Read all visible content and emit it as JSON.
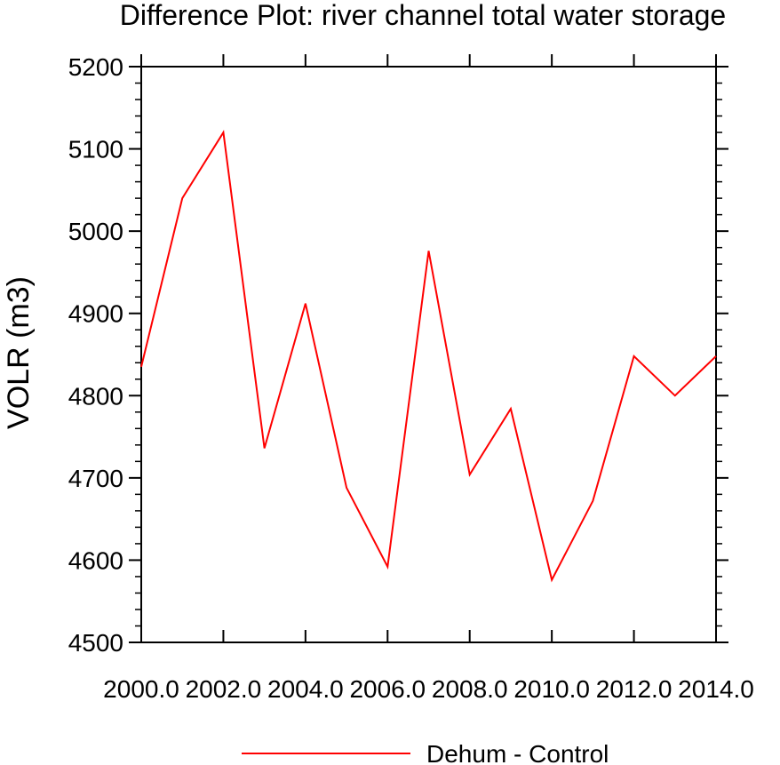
{
  "chart_data": {
    "type": "line",
    "title": "Difference Plot: river channel total water storage",
    "xlabel": "",
    "ylabel": "VOLR  (m3)",
    "xlim": [
      2000,
      2014
    ],
    "ylim": [
      4500,
      5200
    ],
    "x_ticks": [
      2000,
      2002,
      2004,
      2006,
      2008,
      2010,
      2012,
      2014
    ],
    "x_tick_labels": [
      "2000.0",
      "2002.0",
      "2004.0",
      "2006.0",
      "2008.0",
      "2010.0",
      "2012.0",
      "2014.0"
    ],
    "y_ticks": [
      4500,
      4600,
      4700,
      4800,
      4900,
      5000,
      5100,
      5200
    ],
    "y_tick_labels": [
      "4500",
      "4600",
      "4700",
      "4800",
      "4900",
      "5000",
      "5100",
      "5200"
    ],
    "grid": false,
    "legend_position": "bottom-center",
    "series": [
      {
        "name": "Dehum - Control",
        "color": "#ff0000",
        "x": [
          2000,
          2001,
          2002,
          2003,
          2004,
          2005,
          2006,
          2007,
          2008,
          2009,
          2010,
          2011,
          2012,
          2013,
          2014
        ],
        "y": [
          4835,
          5040,
          5120,
          4736,
          4912,
          4688,
          4592,
          4976,
          4704,
          4784,
          4576,
          4672,
          4848,
          4800,
          4848
        ]
      }
    ]
  }
}
